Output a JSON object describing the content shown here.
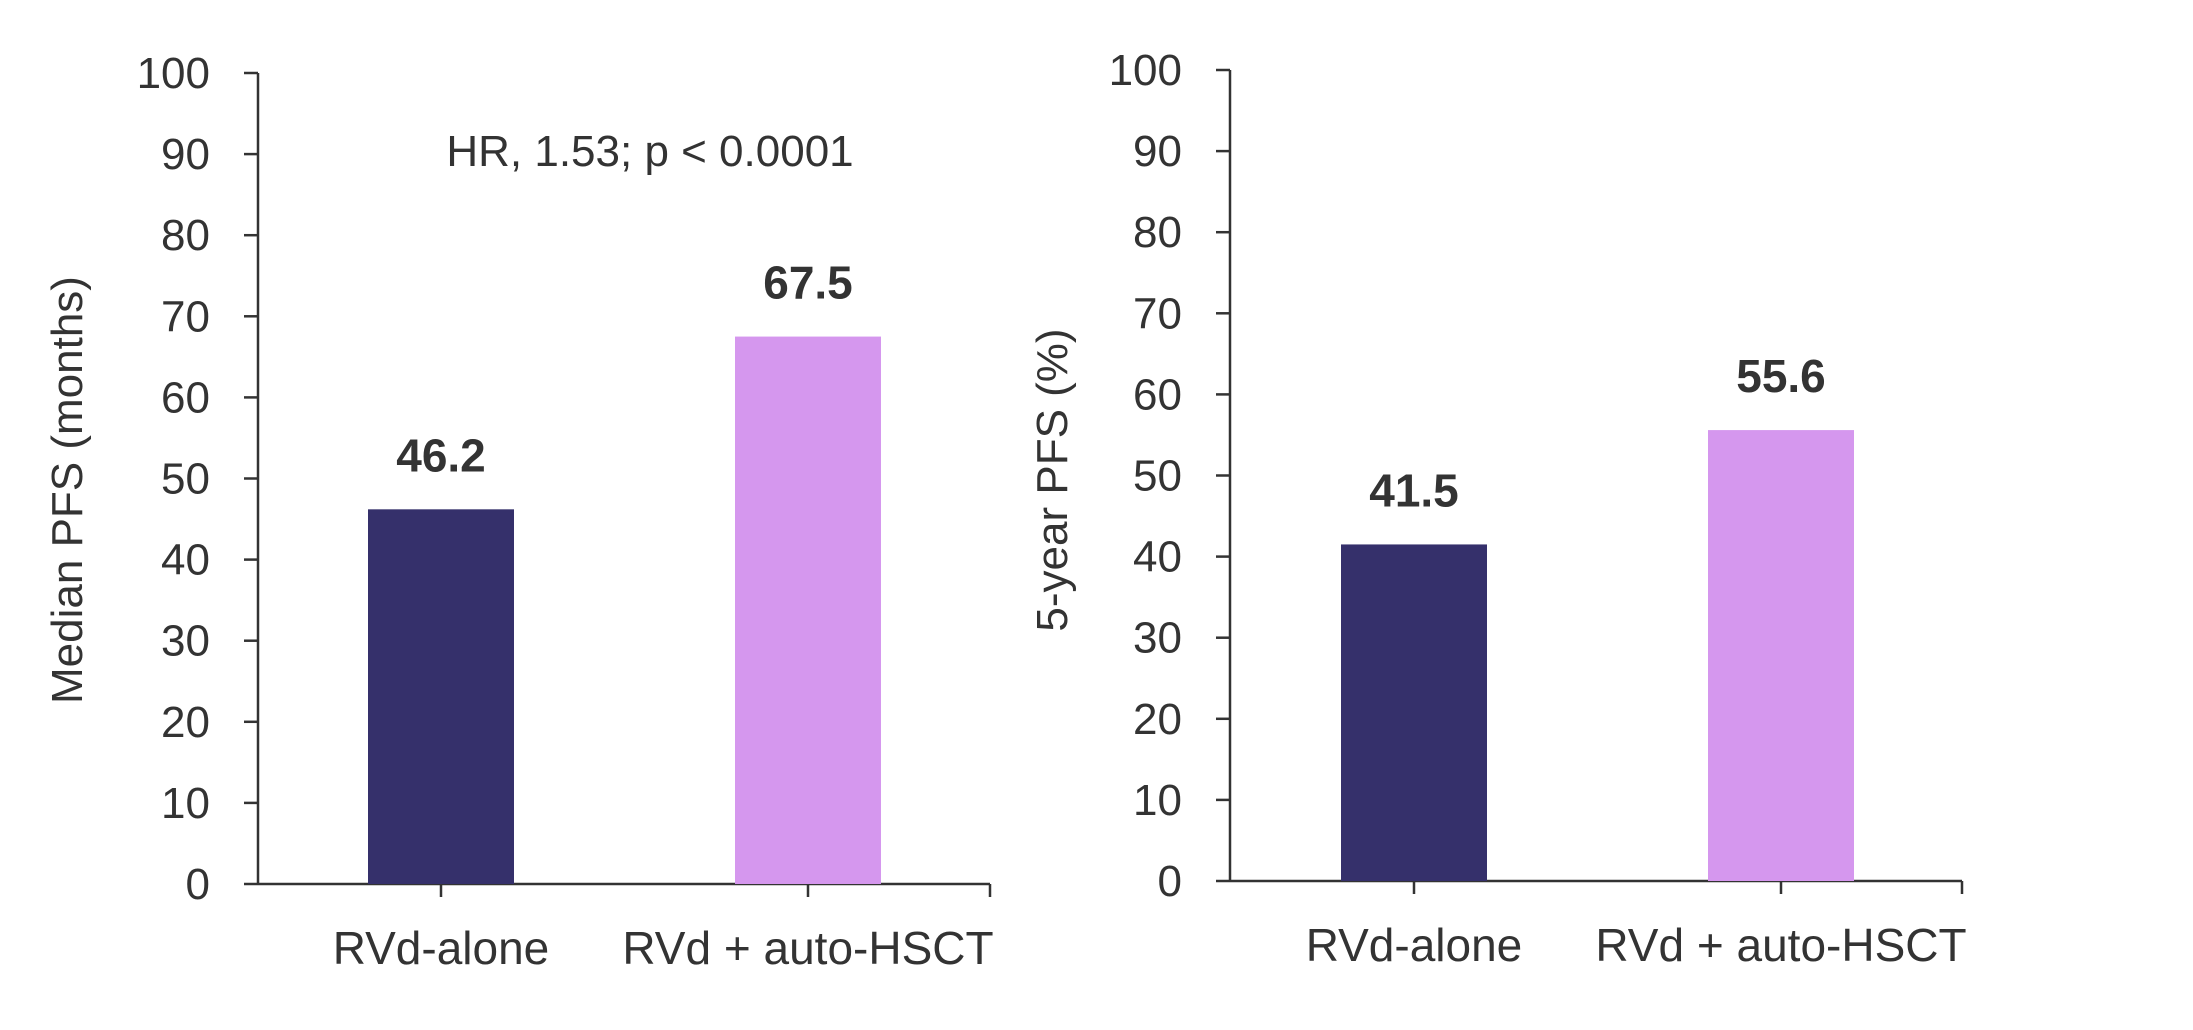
{
  "colors": {
    "axis": "#333333",
    "text": "#333333",
    "bar_primary": "#35306B",
    "bar_secondary": "#D597EE"
  },
  "chart_data": [
    {
      "type": "bar",
      "title": "",
      "categories": [
        "RVd-alone",
        "RVd + auto-HSCT"
      ],
      "values": [
        46.2,
        67.5
      ],
      "data_labels": [
        "46.2",
        "67.5"
      ],
      "bar_colors": [
        "#35306B",
        "#D597EE"
      ],
      "xlabel": "",
      "ylabel": "Median PFS (months)",
      "ylim": [
        0,
        100
      ],
      "yticks": [
        "0",
        "10",
        "20",
        "30",
        "40",
        "50",
        "60",
        "70",
        "80",
        "90",
        "100"
      ],
      "annotation": "HR, 1.53; p < 0.0001",
      "grid": false
    },
    {
      "type": "bar",
      "title": "",
      "categories": [
        "RVd-alone",
        "RVd + auto-HSCT"
      ],
      "values": [
        41.5,
        55.6
      ],
      "data_labels": [
        "41.5",
        "55.6"
      ],
      "bar_colors": [
        "#35306B",
        "#D597EE"
      ],
      "xlabel": "",
      "ylabel": "5-year PFS (%)",
      "ylim": [
        0,
        100
      ],
      "yticks": [
        "0",
        "10",
        "20",
        "30",
        "40",
        "50",
        "60",
        "70",
        "80",
        "90",
        "100"
      ],
      "annotation": "",
      "grid": false
    }
  ]
}
